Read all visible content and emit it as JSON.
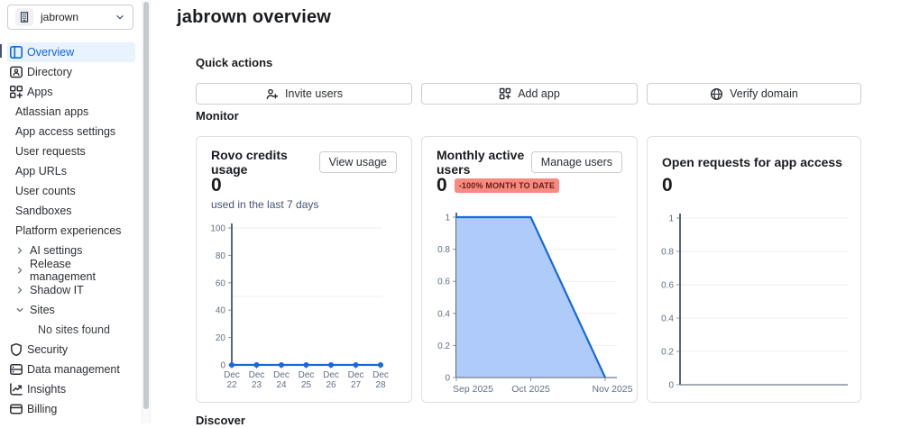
{
  "org_selector": {
    "name": "jabrown"
  },
  "sidebar": {
    "items": [
      {
        "label": "Overview",
        "type": "icon",
        "icon": "overview-icon",
        "selected": true
      },
      {
        "label": "Directory",
        "type": "icon",
        "icon": "directory-icon"
      },
      {
        "label": "Apps",
        "type": "icon",
        "icon": "apps-icon"
      },
      {
        "label": "Atlassian apps",
        "type": "plain"
      },
      {
        "label": "App access settings",
        "type": "plain"
      },
      {
        "label": "User requests",
        "type": "plain"
      },
      {
        "label": "App URLs",
        "type": "plain"
      },
      {
        "label": "User counts",
        "type": "plain"
      },
      {
        "label": "Sandboxes",
        "type": "plain"
      },
      {
        "label": "Platform experiences",
        "type": "plain"
      },
      {
        "label": "AI settings",
        "type": "expand",
        "icon": "chevron-right-icon"
      },
      {
        "label": "Release management",
        "type": "expand",
        "icon": "chevron-right-icon"
      },
      {
        "label": "Shadow IT",
        "type": "expand",
        "icon": "chevron-right-icon"
      },
      {
        "label": "Sites",
        "type": "expanded",
        "icon": "chevron-down-icon"
      },
      {
        "label": "No sites found",
        "type": "note"
      },
      {
        "label": "Security",
        "type": "icon",
        "icon": "security-icon"
      },
      {
        "label": "Data management",
        "type": "icon",
        "icon": "data-management-icon"
      },
      {
        "label": "Insights",
        "type": "icon",
        "icon": "insights-icon"
      },
      {
        "label": "Billing",
        "type": "icon",
        "icon": "billing-icon"
      }
    ]
  },
  "header": {
    "title": "jabrown overview"
  },
  "sections": {
    "quick_actions": {
      "heading": "Quick actions",
      "buttons": [
        {
          "label": "Invite users",
          "icon": "invite-user-icon"
        },
        {
          "label": "Add app",
          "icon": "add-app-icon"
        },
        {
          "label": "Verify domain",
          "icon": "globe-icon"
        }
      ]
    },
    "monitor": {
      "heading": "Monitor"
    },
    "discover": {
      "heading": "Discover"
    }
  },
  "cards": [
    {
      "title": "Rovo credits usage",
      "action": "View usage",
      "value": "0",
      "subtitle": "used in the last 7 days"
    },
    {
      "title": "Monthly active users",
      "action": "Manage users",
      "value": "0",
      "badge": "-100% MONTH TO DATE"
    },
    {
      "title": "Open requests for app access",
      "value": "0"
    }
  ],
  "chart_data": [
    {
      "type": "line",
      "title": "Rovo credits usage",
      "x": [
        "Dec 22",
        "Dec 23",
        "Dec 24",
        "Dec 25",
        "Dec 26",
        "Dec 27",
        "Dec 28"
      ],
      "values": [
        0,
        0,
        0,
        0,
        0,
        0,
        0
      ],
      "ylim": [
        0,
        100
      ],
      "yticks": [
        0,
        20,
        40,
        60,
        80,
        100
      ],
      "gridlines": [
        50,
        100
      ],
      "grid": true,
      "legend": "none",
      "markers": true
    },
    {
      "type": "area",
      "title": "Monthly active users",
      "x": [
        "Sep 2025",
        "Oct 2025",
        "Nov 2025"
      ],
      "values": [
        1,
        1,
        0
      ],
      "ylim": [
        0,
        1
      ],
      "yticks": [
        0,
        0.2,
        0.4,
        0.6,
        0.8,
        1
      ],
      "grid": true,
      "legend": "none"
    },
    {
      "type": "line",
      "title": "Open requests for app access",
      "x": [],
      "values": [],
      "ylim": [
        0,
        1
      ],
      "yticks": [
        0,
        0.2,
        0.4,
        0.6,
        0.8,
        1
      ],
      "grid": true,
      "legend": "none"
    }
  ],
  "colors": {
    "accent": "#0C66E4",
    "accent_bg": "#E9F2FF",
    "chart_line": "#1868DB",
    "chart_fill": "#AECBFA",
    "badge_bg": "#F98A80",
    "badge_text": "#5D1F1A",
    "axis": "#596773",
    "grid": "#EDEFF2",
    "tick_text": "#626F86"
  }
}
